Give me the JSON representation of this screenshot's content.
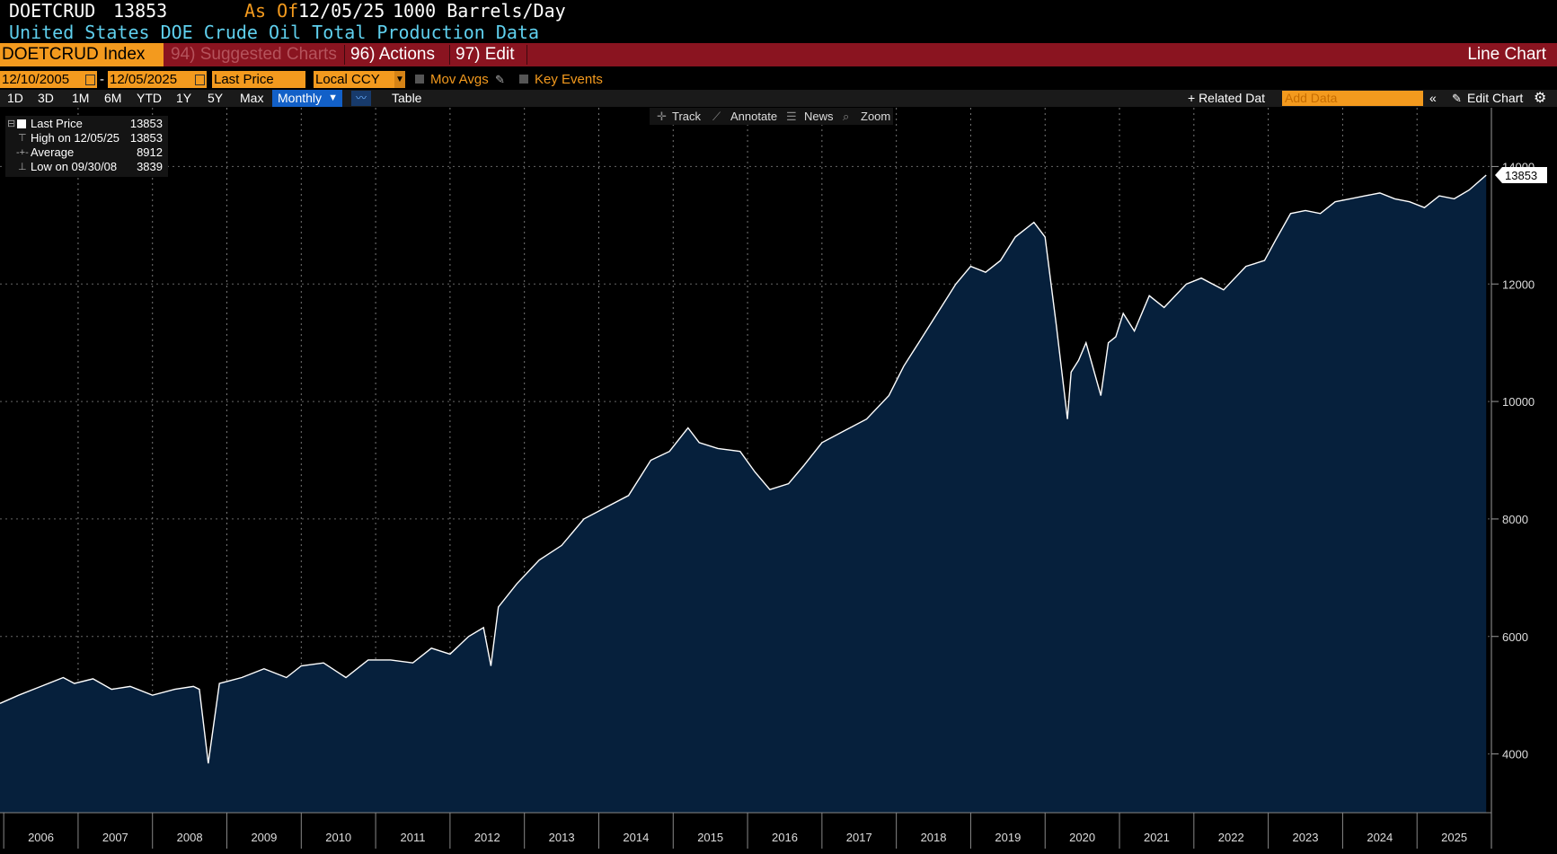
{
  "header": {
    "ticker": "DOETCRUD",
    "last": "13853",
    "as_of_label": "As Of",
    "as_of_date": "12/05/25",
    "units": "1000 Barrels/Day",
    "description": "United States DOE Crude Oil Total Production Data"
  },
  "toolbar": {
    "security": "DOETCRUD Index",
    "suggested": "94) Suggested Charts",
    "actions": "96) Actions",
    "edit": "97) Edit",
    "chart_type": "Line Chart"
  },
  "options": {
    "start_date": "12/10/2005",
    "dash": "-",
    "end_date": "12/05/2025",
    "field": "Last Price",
    "currency": "Local CCY",
    "mov_avgs": "Mov Avgs",
    "key_events": "Key Events"
  },
  "periods": [
    "1D",
    "3D",
    "1M",
    "6M",
    "YTD",
    "1Y",
    "5Y",
    "Max"
  ],
  "periodicity": "Monthly",
  "table_label": "Table",
  "related": "+ Related Dat",
  "add_data_placeholder": "Add Data",
  "edit_chart": "Edit Chart",
  "tools": {
    "track": "Track",
    "annotate": "Annotate",
    "news": "News",
    "zoom": "Zoom"
  },
  "legend": [
    {
      "label": "Last Price",
      "value": "13853"
    },
    {
      "label": "High on 12/05/25",
      "value": "13853"
    },
    {
      "label": "Average",
      "value": "8912"
    },
    {
      "label": "Low on 09/30/08",
      "value": "3839"
    }
  ],
  "colors": {
    "area": "#06203c",
    "line": "#ffffff",
    "accent": "#f39a1e",
    "bar": "#8a1420"
  },
  "chart_data": {
    "type": "area",
    "ylim": [
      3000,
      15000
    ],
    "yticks": [
      4000,
      6000,
      8000,
      10000,
      12000,
      14000
    ],
    "xlim": [
      2005.95,
      2026.0
    ],
    "xtick_labels": [
      "2006",
      "2007",
      "2008",
      "2009",
      "2010",
      "2011",
      "2012",
      "2013",
      "2014",
      "2015",
      "2016",
      "2017",
      "2018",
      "2019",
      "2020",
      "2021",
      "2022",
      "2023",
      "2024",
      "2025"
    ],
    "last_value_label": "13853",
    "x": [
      2005.95,
      2006.2,
      2006.5,
      2006.8,
      2006.95,
      2007.2,
      2007.45,
      2007.7,
      2008.0,
      2008.3,
      2008.55,
      2008.63,
      2008.75,
      2008.9,
      2009.2,
      2009.5,
      2009.8,
      2010.0,
      2010.3,
      2010.6,
      2010.9,
      2011.2,
      2011.5,
      2011.75,
      2012.0,
      2012.25,
      2012.45,
      2012.55,
      2012.65,
      2012.9,
      2013.2,
      2013.5,
      2013.8,
      2014.1,
      2014.4,
      2014.7,
      2014.95,
      2015.2,
      2015.35,
      2015.6,
      2015.9,
      2016.1,
      2016.3,
      2016.55,
      2016.75,
      2017.0,
      2017.3,
      2017.6,
      2017.9,
      2018.1,
      2018.3,
      2018.5,
      2018.8,
      2019.0,
      2019.2,
      2019.4,
      2019.6,
      2019.85,
      2020.0,
      2020.15,
      2020.3,
      2020.35,
      2020.45,
      2020.55,
      2020.75,
      2020.85,
      2020.95,
      2021.05,
      2021.2,
      2021.4,
      2021.6,
      2021.9,
      2022.1,
      2022.4,
      2022.7,
      2022.95,
      2023.1,
      2023.3,
      2023.5,
      2023.7,
      2023.9,
      2024.1,
      2024.3,
      2024.5,
      2024.7,
      2024.9,
      2025.1,
      2025.3,
      2025.5,
      2025.7,
      2025.93
    ],
    "values": [
      4860,
      5000,
      5150,
      5300,
      5200,
      5280,
      5100,
      5150,
      5000,
      5100,
      5150,
      5100,
      3839,
      5200,
      5300,
      5450,
      5300,
      5500,
      5550,
      5300,
      5600,
      5600,
      5550,
      5800,
      5700,
      6000,
      6150,
      5500,
      6500,
      6900,
      7300,
      7550,
      8000,
      8200,
      8400,
      9000,
      9150,
      9550,
      9300,
      9200,
      9150,
      8800,
      8500,
      8600,
      8900,
      9300,
      9500,
      9700,
      10100,
      10600,
      11000,
      11400,
      12000,
      12300,
      12200,
      12400,
      12800,
      13050,
      12800,
      11300,
      9700,
      10500,
      10700,
      11000,
      10100,
      11000,
      11100,
      11500,
      11200,
      11800,
      11600,
      12000,
      12100,
      11900,
      12300,
      12400,
      12750,
      13200,
      13250,
      13200,
      13400,
      13450,
      13500,
      13550,
      13450,
      13400,
      13300,
      13500,
      13450,
      13600,
      13853
    ]
  }
}
